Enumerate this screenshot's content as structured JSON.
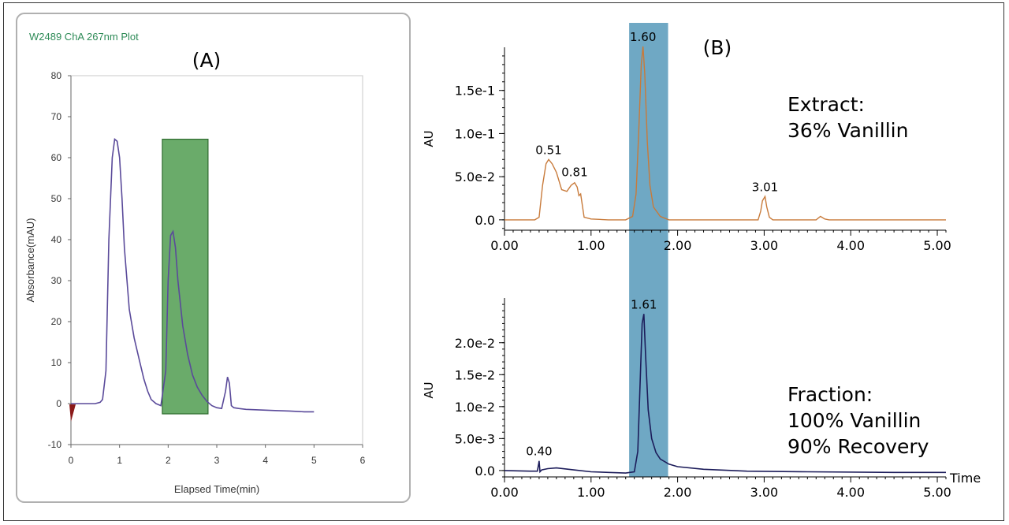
{
  "panel_a": {
    "plot_title": "W2489 ChA 267nm Plot",
    "panel_label": "(A)",
    "colors": {
      "trace": "#5a4a9a",
      "highlight": "#6aab6a",
      "title": "#2e8b57",
      "box_border": "#b0b0b0"
    }
  },
  "panel_b": {
    "panel_label": "(B)",
    "colors": {
      "top_trace": "#c87a3a",
      "bottom_trace": "#1c1c5a",
      "highlight": "#6fa8c4"
    },
    "top_annotation": {
      "line1": "Extract:",
      "line2": "36% Vanillin"
    },
    "bottom_annotation": {
      "line1": "Fraction:",
      "line2": "100% Vanillin",
      "line3": "90% Recovery"
    }
  },
  "chart_data": [
    {
      "type": "line",
      "title": "W2489 ChA 267nm Plot",
      "xlabel": "Elapsed Time(min)",
      "ylabel": "Absorbance(mAU)",
      "xlim": [
        0,
        6
      ],
      "ylim": [
        -10,
        80
      ],
      "xticks": [
        "0",
        "1",
        "2",
        "3",
        "4",
        "5",
        "6"
      ],
      "yticks": [
        "-10",
        "0",
        "10",
        "20",
        "30",
        "40",
        "50",
        "60",
        "70",
        "80"
      ],
      "grid": false,
      "highlight_region": {
        "x": [
          1.88,
          2.82
        ],
        "y": [
          -2.5,
          64.5
        ]
      },
      "series": [
        {
          "x": [
            0,
            0.5,
            0.6,
            0.65,
            0.72,
            0.78,
            0.85,
            0.9,
            0.95,
            1.0,
            1.05,
            1.1,
            1.2,
            1.3,
            1.4,
            1.5,
            1.58,
            1.65,
            1.75,
            1.85,
            1.95,
            2.0,
            2.05,
            2.1,
            2.15,
            2.2,
            2.3,
            2.4,
            2.5,
            2.6,
            2.7,
            2.8,
            2.9,
            3.0,
            3.1,
            3.18,
            3.22,
            3.26,
            3.3,
            3.35,
            3.45,
            3.6,
            3.8,
            4.0,
            4.2,
            4.5,
            4.8,
            5.0
          ],
          "y": [
            0,
            0,
            0.3,
            1,
            8,
            40,
            60,
            64.5,
            64,
            60,
            50,
            38,
            23,
            16,
            11,
            6,
            3,
            1,
            0,
            -0.5,
            8,
            30,
            41,
            42,
            38,
            30,
            19,
            12,
            7,
            4,
            2,
            0.5,
            -0.5,
            -1,
            -1.2,
            3,
            6.5,
            5,
            -0.5,
            -1,
            -1.2,
            -1.4,
            -1.5,
            -1.6,
            -1.7,
            -1.8,
            -2,
            -2
          ]
        }
      ]
    },
    {
      "type": "line",
      "xlabel": "",
      "ylabel": "AU",
      "xlim": [
        0,
        5.1
      ],
      "ylim": [
        -0.012,
        0.2
      ],
      "xticks": [
        "0.00",
        "1.00",
        "2.00",
        "3.00",
        "4.00",
        "5.00"
      ],
      "yticks": [
        "0.0",
        "5.0e-2",
        "1.0e-1",
        "1.5e-1"
      ],
      "grid": false,
      "highlight_region": {
        "x": [
          1.44,
          1.89
        ]
      },
      "peak_labels": [
        {
          "x": 0.51,
          "y": 0.07,
          "label": "0.51"
        },
        {
          "x": 0.81,
          "y": 0.044,
          "label": "0.81"
        },
        {
          "x": 1.6,
          "y": 0.201,
          "label": "1.60"
        },
        {
          "x": 3.01,
          "y": 0.027,
          "label": "3.01"
        }
      ],
      "series": [
        {
          "x": [
            0,
            0.35,
            0.4,
            0.44,
            0.48,
            0.51,
            0.55,
            0.6,
            0.66,
            0.72,
            0.77,
            0.81,
            0.84,
            0.86,
            0.88,
            0.92,
            1.0,
            1.2,
            1.4,
            1.48,
            1.52,
            1.55,
            1.58,
            1.6,
            1.62,
            1.65,
            1.68,
            1.72,
            1.8,
            1.9,
            2.5,
            2.93,
            2.96,
            2.98,
            3.01,
            3.03,
            3.06,
            3.1,
            3.6,
            3.65,
            3.7,
            3.75,
            5.1
          ],
          "y": [
            0,
            0,
            0.003,
            0.04,
            0.065,
            0.07,
            0.065,
            0.055,
            0.035,
            0.033,
            0.04,
            0.043,
            0.038,
            0.028,
            0.03,
            0.003,
            0.001,
            0,
            0,
            0.004,
            0.03,
            0.1,
            0.18,
            0.201,
            0.17,
            0.09,
            0.04,
            0.015,
            0.004,
            0,
            0,
            0,
            0.01,
            0.022,
            0.027,
            0.015,
            0.003,
            0,
            0,
            0.004,
            0.001,
            0,
            0
          ]
        }
      ]
    },
    {
      "type": "line",
      "xlabel": "Time",
      "ylabel": "AU",
      "xlim": [
        0,
        5.1
      ],
      "ylim": [
        -0.001,
        0.027
      ],
      "xticks": [
        "0.00",
        "1.00",
        "2.00",
        "3.00",
        "4.00",
        "5.00"
      ],
      "yticks": [
        "0.0",
        "5.0e-3",
        "1.0e-2",
        "1.5e-2",
        "2.0e-2"
      ],
      "grid": false,
      "highlight_region": {
        "x": [
          1.44,
          1.89
        ]
      },
      "peak_labels": [
        {
          "x": 0.4,
          "y": 0.0015,
          "label": "0.40"
        },
        {
          "x": 1.61,
          "y": 0.0245,
          "label": "1.61"
        }
      ],
      "series": [
        {
          "x": [
            0,
            0.3,
            0.38,
            0.395,
            0.4,
            0.41,
            0.43,
            0.5,
            0.6,
            0.8,
            1.0,
            1.2,
            1.4,
            1.5,
            1.54,
            1.57,
            1.59,
            1.61,
            1.63,
            1.66,
            1.7,
            1.75,
            1.8,
            1.9,
            2.0,
            2.3,
            2.8,
            3.5,
            4.5,
            5.1
          ],
          "y": [
            0,
            -0.0001,
            -0.0001,
            0.0011,
            0.0015,
            -0.0002,
            0.0001,
            0.0003,
            0.0004,
            0.0001,
            -0.0002,
            -0.0003,
            -0.0004,
            -0.0002,
            0.003,
            0.015,
            0.023,
            0.0245,
            0.018,
            0.0095,
            0.005,
            0.0028,
            0.0018,
            0.001,
            0.0006,
            0.0002,
            -0.0001,
            -0.0002,
            -0.0003,
            -0.0003
          ]
        }
      ]
    }
  ]
}
